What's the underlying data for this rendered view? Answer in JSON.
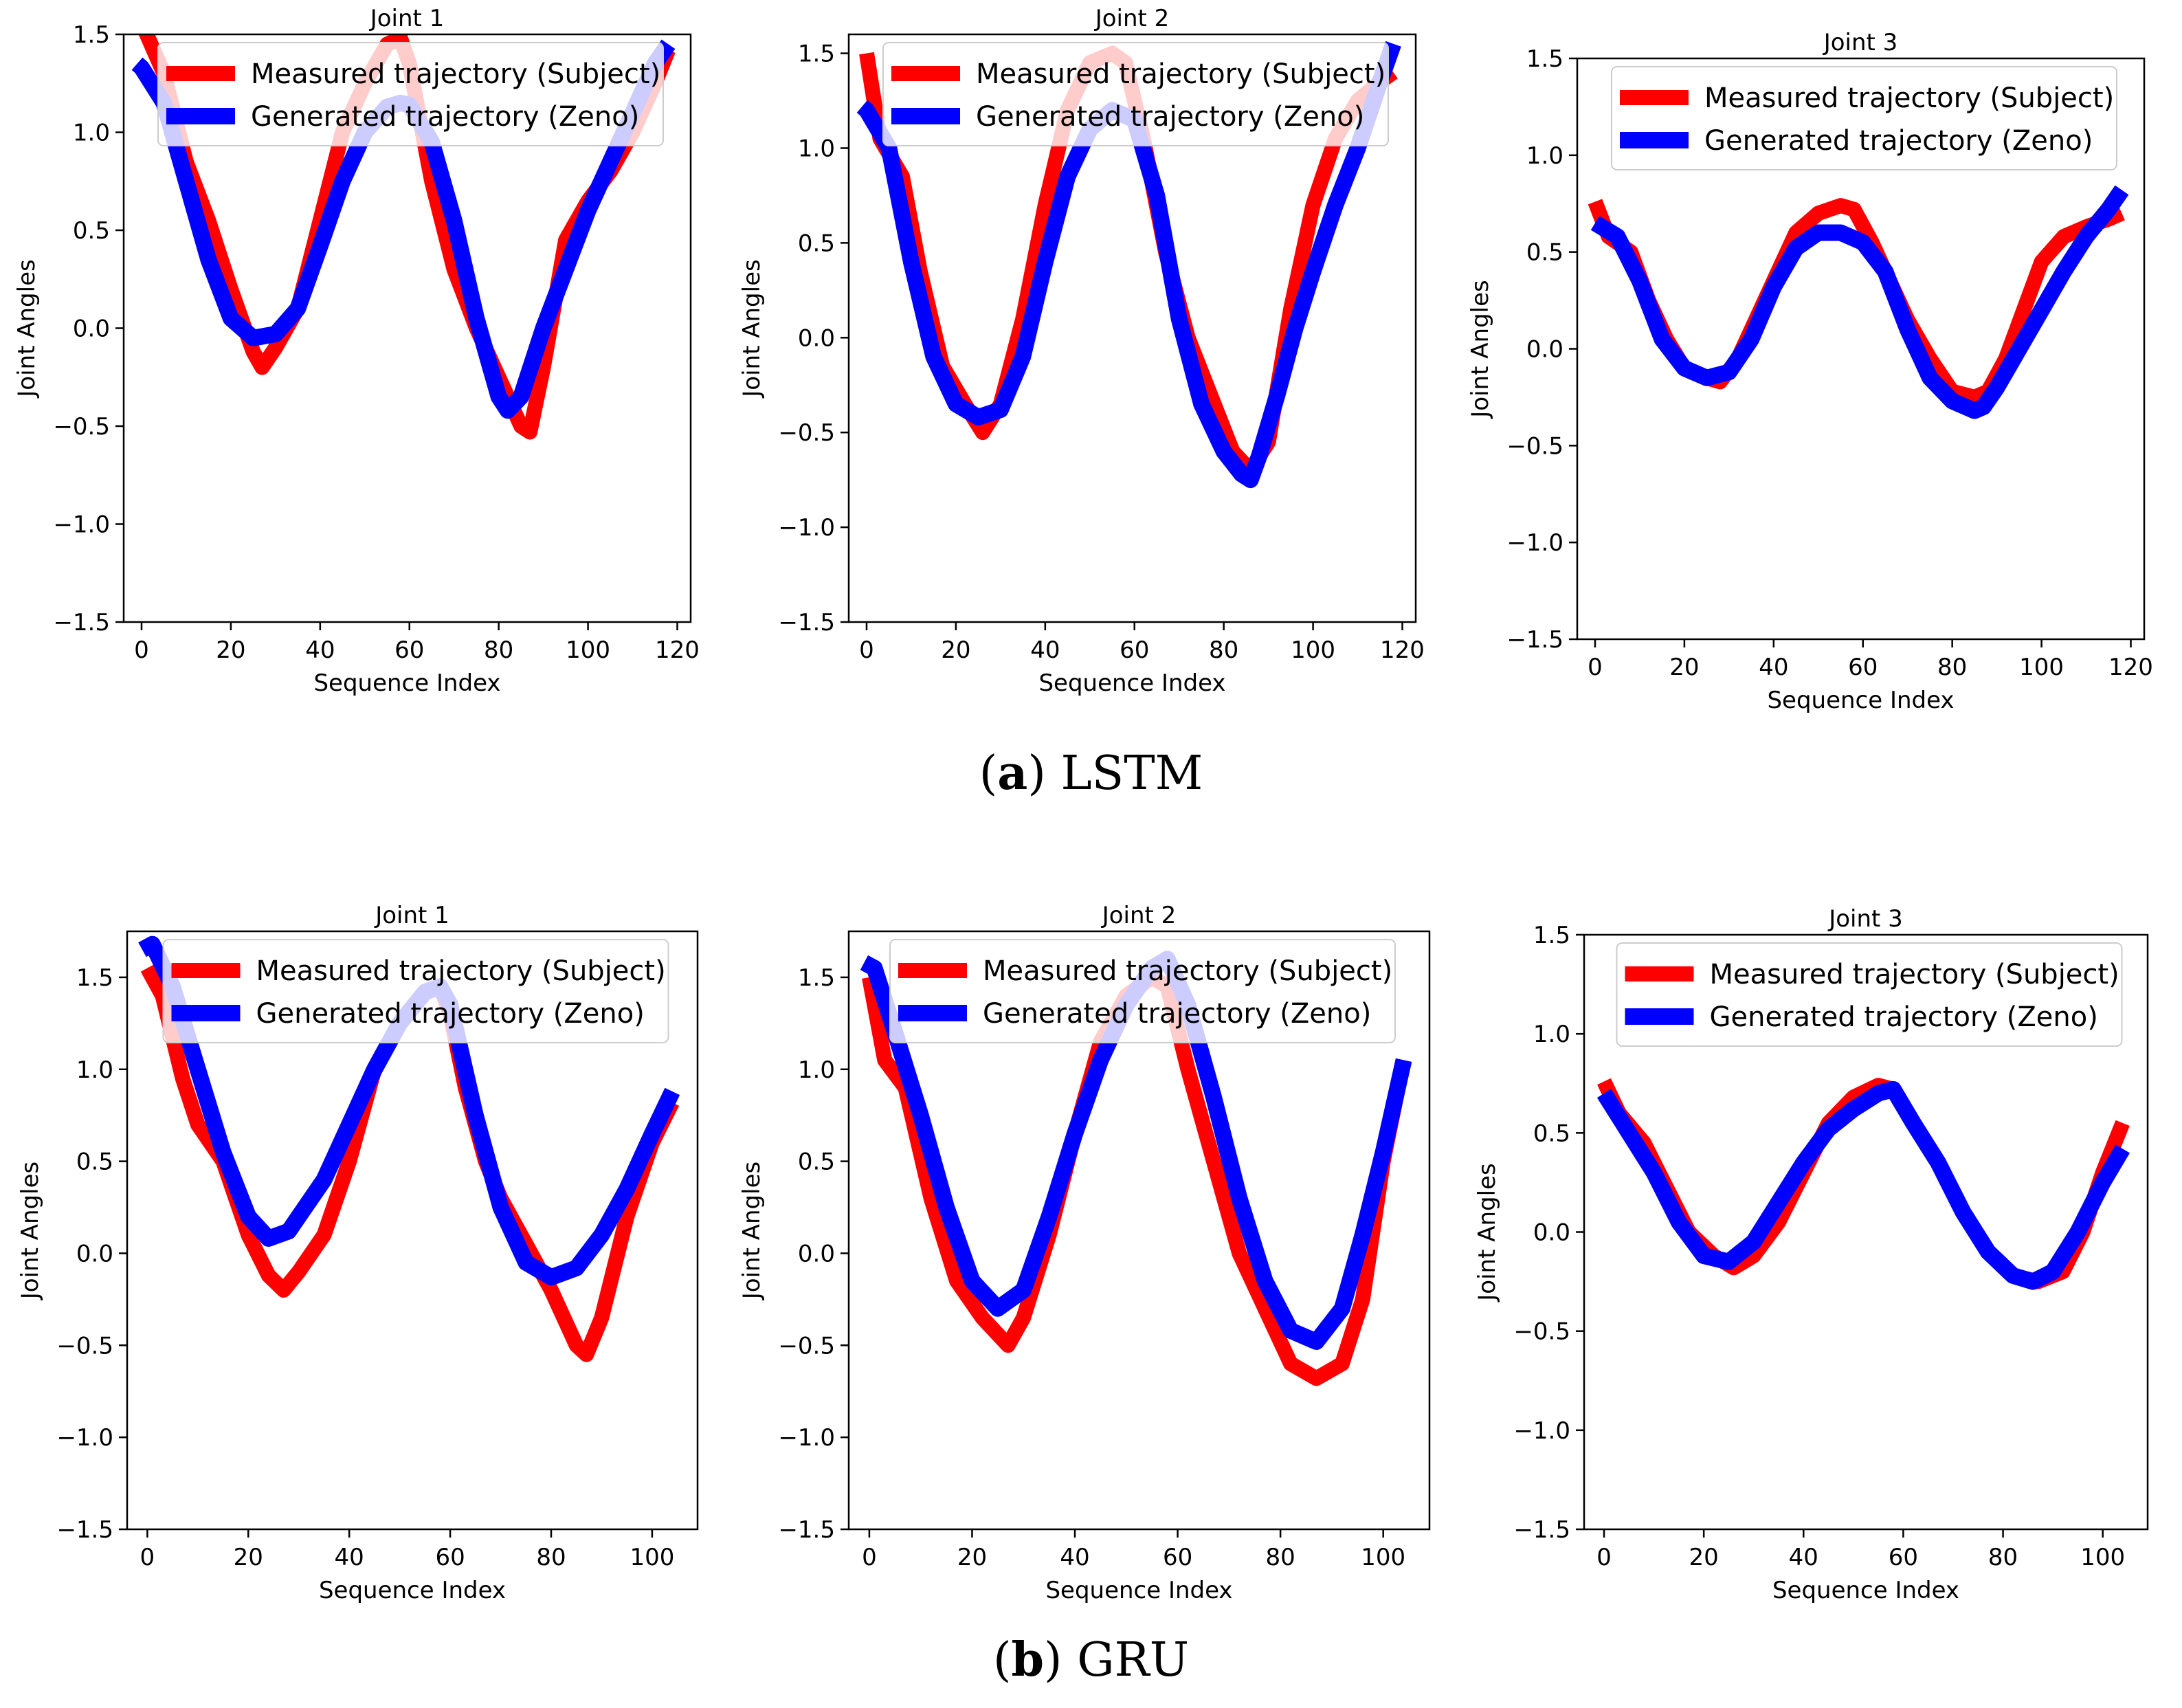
{
  "captions": {
    "a_label": "a",
    "a_text": "LSTM",
    "b_label": "b",
    "b_text": "GRU"
  },
  "colors": {
    "measured": "#ff0000",
    "generated": "#0000ff"
  },
  "chart_data": [
    {
      "type": "line",
      "group": "LSTM",
      "title": "Joint 1",
      "xlabel": "Sequence Index",
      "ylabel": "Joint Angles",
      "xlim": [
        -4,
        123
      ],
      "ylim": [
        -1.5,
        1.5
      ],
      "xticks": [
        0,
        20,
        40,
        60,
        80,
        100,
        120
      ],
      "xtick_labels": [
        "0",
        "20",
        "40",
        "60",
        "80",
        "100",
        "120"
      ],
      "yticks": [
        -1.5,
        -1.0,
        -0.5,
        0.0,
        0.5,
        1.0,
        1.5
      ],
      "ytick_labels": [
        "−1.5",
        "−1.0",
        "−0.5",
        "0.0",
        "0.5",
        "1.0",
        "1.5"
      ],
      "legend": "top-center",
      "series": [
        {
          "name": "Measured trajectory (Subject)",
          "color": "#ff0000",
          "x": [
            0,
            5,
            10,
            15,
            20,
            25,
            27,
            30,
            35,
            40,
            45,
            50,
            55,
            58,
            60,
            65,
            70,
            75,
            80,
            85,
            87,
            90,
            95,
            100,
            105,
            110,
            115,
            118
          ],
          "y": [
            1.56,
            1.3,
            0.85,
            0.55,
            0.2,
            -0.12,
            -0.2,
            -0.1,
            0.1,
            0.55,
            1.0,
            1.25,
            1.45,
            1.48,
            1.35,
            0.75,
            0.3,
            0.0,
            -0.25,
            -0.5,
            -0.53,
            -0.2,
            0.45,
            0.65,
            0.8,
            1.0,
            1.25,
            1.42
          ]
        },
        {
          "name": "Generated trajectory (Zeno)",
          "color": "#0000ff",
          "x": [
            -1,
            0,
            5,
            10,
            15,
            20,
            25,
            30,
            35,
            40,
            45,
            50,
            55,
            58,
            60,
            65,
            70,
            75,
            80,
            82,
            85,
            90,
            95,
            100,
            105,
            110,
            115,
            118
          ],
          "y": [
            1.35,
            1.33,
            1.15,
            0.75,
            0.35,
            0.05,
            -0.05,
            -0.03,
            0.1,
            0.42,
            0.75,
            1.0,
            1.13,
            1.15,
            1.14,
            0.95,
            0.55,
            0.05,
            -0.35,
            -0.42,
            -0.35,
            0.0,
            0.3,
            0.6,
            0.85,
            1.1,
            1.35,
            1.45
          ]
        }
      ]
    },
    {
      "type": "line",
      "group": "LSTM",
      "title": "Joint 2",
      "xlabel": "Sequence Index",
      "ylabel": "Joint Angles",
      "xlim": [
        -4,
        123
      ],
      "ylim": [
        -1.5,
        1.6
      ],
      "xticks": [
        0,
        20,
        40,
        60,
        80,
        100,
        120
      ],
      "xtick_labels": [
        "0",
        "20",
        "40",
        "60",
        "80",
        "100",
        "120"
      ],
      "yticks": [
        -1.5,
        -1.0,
        -0.5,
        0.0,
        0.5,
        1.0,
        1.5
      ],
      "ytick_labels": [
        "−1.5",
        "−1.0",
        "−0.5",
        "0.0",
        "0.5",
        "1.0",
        "1.5"
      ],
      "legend": "top-center",
      "series": [
        {
          "name": "Measured trajectory (Subject)",
          "color": "#ff0000",
          "x": [
            0,
            3,
            8,
            12,
            17,
            22,
            26,
            30,
            35,
            40,
            45,
            50,
            55,
            58,
            62,
            67,
            72,
            77,
            82,
            86,
            90,
            95,
            100,
            105,
            110,
            115,
            118
          ],
          "y": [
            1.5,
            1.05,
            0.85,
            0.35,
            -0.15,
            -0.35,
            -0.5,
            -0.35,
            0.1,
            0.7,
            1.2,
            1.45,
            1.5,
            1.45,
            1.05,
            0.45,
            0.0,
            -0.3,
            -0.6,
            -0.7,
            -0.55,
            0.15,
            0.7,
            1.05,
            1.25,
            1.35,
            1.4
          ]
        },
        {
          "name": "Generated trajectory (Zeno)",
          "color": "#0000ff",
          "x": [
            -1,
            0,
            5,
            10,
            15,
            20,
            25,
            30,
            35,
            40,
            45,
            50,
            55,
            60,
            65,
            70,
            75,
            80,
            84,
            86,
            88,
            92,
            96,
            100,
            105,
            110,
            115,
            118
          ],
          "y": [
            1.22,
            1.2,
            1.0,
            0.4,
            -0.1,
            -0.35,
            -0.42,
            -0.38,
            -0.1,
            0.4,
            0.85,
            1.1,
            1.2,
            1.15,
            0.75,
            0.1,
            -0.35,
            -0.6,
            -0.72,
            -0.75,
            -0.62,
            -0.3,
            0.05,
            0.35,
            0.7,
            1.0,
            1.35,
            1.55
          ]
        }
      ]
    },
    {
      "type": "line",
      "group": "LSTM",
      "title": "Joint 3",
      "xlabel": "Sequence Index",
      "ylabel": "Joint Angles",
      "xlim": [
        -4,
        123
      ],
      "ylim": [
        -1.5,
        1.5
      ],
      "xticks": [
        0,
        20,
        40,
        60,
        80,
        100,
        120
      ],
      "xtick_labels": [
        "0",
        "20",
        "40",
        "60",
        "80",
        "100",
        "120"
      ],
      "yticks": [
        -1.5,
        -1.0,
        -0.5,
        0.0,
        0.5,
        1.0,
        1.5
      ],
      "ytick_labels": [
        "−1.5",
        "−1.0",
        "−0.5",
        "0.0",
        "0.5",
        "1.0",
        "1.5"
      ],
      "legend": "top-center",
      "series": [
        {
          "name": "Measured trajectory (Subject)",
          "color": "#ff0000",
          "x": [
            0,
            3,
            8,
            12,
            16,
            20,
            25,
            28,
            32,
            36,
            40,
            45,
            50,
            55,
            58,
            62,
            66,
            70,
            75,
            80,
            85,
            88,
            92,
            96,
            100,
            105,
            110,
            115,
            118
          ],
          "y": [
            0.76,
            0.58,
            0.5,
            0.25,
            0.05,
            -0.1,
            -0.15,
            -0.17,
            -0.05,
            0.15,
            0.35,
            0.6,
            0.7,
            0.74,
            0.72,
            0.55,
            0.35,
            0.15,
            -0.05,
            -0.22,
            -0.25,
            -0.22,
            -0.05,
            0.2,
            0.45,
            0.58,
            0.63,
            0.67,
            0.7
          ]
        },
        {
          "name": "Generated trajectory (Zeno)",
          "color": "#0000ff",
          "x": [
            0,
            5,
            10,
            15,
            20,
            25,
            30,
            35,
            40,
            45,
            50,
            55,
            60,
            65,
            70,
            75,
            80,
            85,
            87,
            90,
            95,
            100,
            105,
            110,
            115,
            118
          ],
          "y": [
            0.65,
            0.58,
            0.35,
            0.05,
            -0.1,
            -0.15,
            -0.12,
            0.05,
            0.32,
            0.52,
            0.6,
            0.6,
            0.55,
            0.4,
            0.1,
            -0.15,
            -0.27,
            -0.32,
            -0.3,
            -0.2,
            0.0,
            0.2,
            0.4,
            0.58,
            0.72,
            0.82
          ]
        }
      ]
    },
    {
      "type": "line",
      "group": "GRU",
      "title": "Joint 1",
      "xlabel": "Sequence Index",
      "ylabel": "Joint Angles",
      "xlim": [
        -4,
        109
      ],
      "ylim": [
        -1.5,
        1.75
      ],
      "xticks": [
        0,
        20,
        40,
        60,
        80,
        100
      ],
      "xtick_labels": [
        "0",
        "20",
        "40",
        "60",
        "80",
        "100"
      ],
      "yticks": [
        -1.5,
        -1.0,
        -0.5,
        0.0,
        0.5,
        1.0,
        1.5
      ],
      "ytick_labels": [
        "−1.5",
        "−1.0",
        "−0.5",
        "0.0",
        "0.5",
        "1.0",
        "1.5"
      ],
      "legend": "top-center",
      "series": [
        {
          "name": "Measured trajectory (Subject)",
          "color": "#ff0000",
          "x": [
            0,
            3,
            7,
            10,
            15,
            20,
            24,
            27,
            30,
            35,
            40,
            45,
            50,
            55,
            58,
            60,
            63,
            67,
            70,
            75,
            80,
            85,
            87,
            90,
            95,
            100,
            104
          ],
          "y": [
            1.55,
            1.4,
            0.95,
            0.7,
            0.5,
            0.1,
            -0.12,
            -0.2,
            -0.1,
            0.1,
            0.5,
            1.0,
            1.25,
            1.42,
            1.45,
            1.3,
            0.9,
            0.5,
            0.3,
            0.05,
            -0.2,
            -0.5,
            -0.55,
            -0.35,
            0.2,
            0.6,
            0.82
          ]
        },
        {
          "name": "Generated trajectory (Zeno)",
          "color": "#0000ff",
          "x": [
            -1,
            1,
            5,
            10,
            15,
            20,
            24,
            28,
            35,
            40,
            45,
            50,
            55,
            58,
            60,
            65,
            70,
            75,
            80,
            85,
            90,
            95,
            100,
            104
          ],
          "y": [
            1.65,
            1.68,
            1.45,
            1.0,
            0.55,
            0.2,
            0.08,
            0.12,
            0.4,
            0.7,
            1.0,
            1.25,
            1.42,
            1.45,
            1.35,
            0.75,
            0.25,
            -0.05,
            -0.13,
            -0.08,
            0.1,
            0.35,
            0.65,
            0.88
          ]
        }
      ]
    },
    {
      "type": "line",
      "group": "GRU",
      "title": "Joint 2",
      "xlabel": "Sequence Index",
      "ylabel": "Joint Angles",
      "xlim": [
        -4,
        109
      ],
      "ylim": [
        -1.5,
        1.75
      ],
      "xticks": [
        0,
        20,
        40,
        60,
        80,
        100
      ],
      "xtick_labels": [
        "0",
        "20",
        "40",
        "60",
        "80",
        "100"
      ],
      "yticks": [
        -1.5,
        -1.0,
        -0.5,
        0.0,
        0.5,
        1.0,
        1.5
      ],
      "ytick_labels": [
        "−1.5",
        "−1.0",
        "−0.5",
        "0.0",
        "0.5",
        "1.0",
        "1.5"
      ],
      "legend": "top-center",
      "series": [
        {
          "name": "Measured trajectory (Subject)",
          "color": "#ff0000",
          "x": [
            0,
            3,
            7,
            12,
            17,
            22,
            27,
            30,
            35,
            40,
            45,
            50,
            55,
            58,
            62,
            67,
            72,
            77,
            82,
            87,
            92,
            96,
            100,
            104
          ],
          "y": [
            1.5,
            1.05,
            0.9,
            0.3,
            -0.15,
            -0.35,
            -0.5,
            -0.35,
            0.1,
            0.65,
            1.15,
            1.4,
            1.5,
            1.45,
            1.0,
            0.5,
            0.0,
            -0.3,
            -0.6,
            -0.68,
            -0.6,
            -0.25,
            0.5,
            1.05
          ]
        },
        {
          "name": "Generated trajectory (Zeno)",
          "color": "#0000ff",
          "x": [
            -1,
            1,
            5,
            10,
            15,
            20,
            25,
            30,
            35,
            40,
            45,
            50,
            55,
            58,
            62,
            67,
            72,
            77,
            82,
            87,
            92,
            96,
            100,
            104
          ],
          "y": [
            1.58,
            1.55,
            1.2,
            0.75,
            0.25,
            -0.15,
            -0.3,
            -0.2,
            0.2,
            0.65,
            1.05,
            1.35,
            1.55,
            1.6,
            1.35,
            0.85,
            0.3,
            -0.15,
            -0.42,
            -0.48,
            -0.3,
            0.1,
            0.55,
            1.05
          ]
        }
      ]
    },
    {
      "type": "line",
      "group": "GRU",
      "title": "Joint 3",
      "xlabel": "Sequence Index",
      "ylabel": "Joint Angles",
      "xlim": [
        -4,
        109
      ],
      "ylim": [
        -1.5,
        1.5
      ],
      "xticks": [
        0,
        20,
        40,
        60,
        80,
        100
      ],
      "xtick_labels": [
        "0",
        "20",
        "40",
        "60",
        "80",
        "100"
      ],
      "yticks": [
        -1.5,
        -1.0,
        -0.5,
        0.0,
        0.5,
        1.0,
        1.5
      ],
      "ytick_labels": [
        "−1.5",
        "−1.0",
        "−0.5",
        "0.0",
        "0.5",
        "1.0",
        "1.5"
      ],
      "legend": "top-center",
      "series": [
        {
          "name": "Measured trajectory (Subject)",
          "color": "#ff0000",
          "x": [
            0,
            3,
            8,
            12,
            17,
            22,
            26,
            30,
            35,
            40,
            45,
            50,
            55,
            58,
            62,
            67,
            72,
            77,
            82,
            87,
            92,
            96,
            100,
            104
          ],
          "y": [
            0.76,
            0.6,
            0.45,
            0.25,
            0.0,
            -0.12,
            -0.18,
            -0.12,
            0.05,
            0.3,
            0.55,
            0.68,
            0.74,
            0.72,
            0.55,
            0.35,
            0.1,
            -0.1,
            -0.22,
            -0.25,
            -0.2,
            0.0,
            0.3,
            0.55
          ]
        },
        {
          "name": "Generated trajectory (Zeno)",
          "color": "#0000ff",
          "x": [
            0,
            5,
            10,
            15,
            20,
            25,
            30,
            35,
            40,
            45,
            50,
            55,
            58,
            62,
            67,
            72,
            77,
            82,
            86,
            90,
            95,
            100,
            104
          ],
          "y": [
            0.7,
            0.5,
            0.3,
            0.05,
            -0.12,
            -0.15,
            -0.05,
            0.15,
            0.35,
            0.52,
            0.62,
            0.7,
            0.72,
            0.55,
            0.35,
            0.1,
            -0.1,
            -0.22,
            -0.25,
            -0.2,
            0.0,
            0.25,
            0.42
          ]
        }
      ]
    }
  ]
}
